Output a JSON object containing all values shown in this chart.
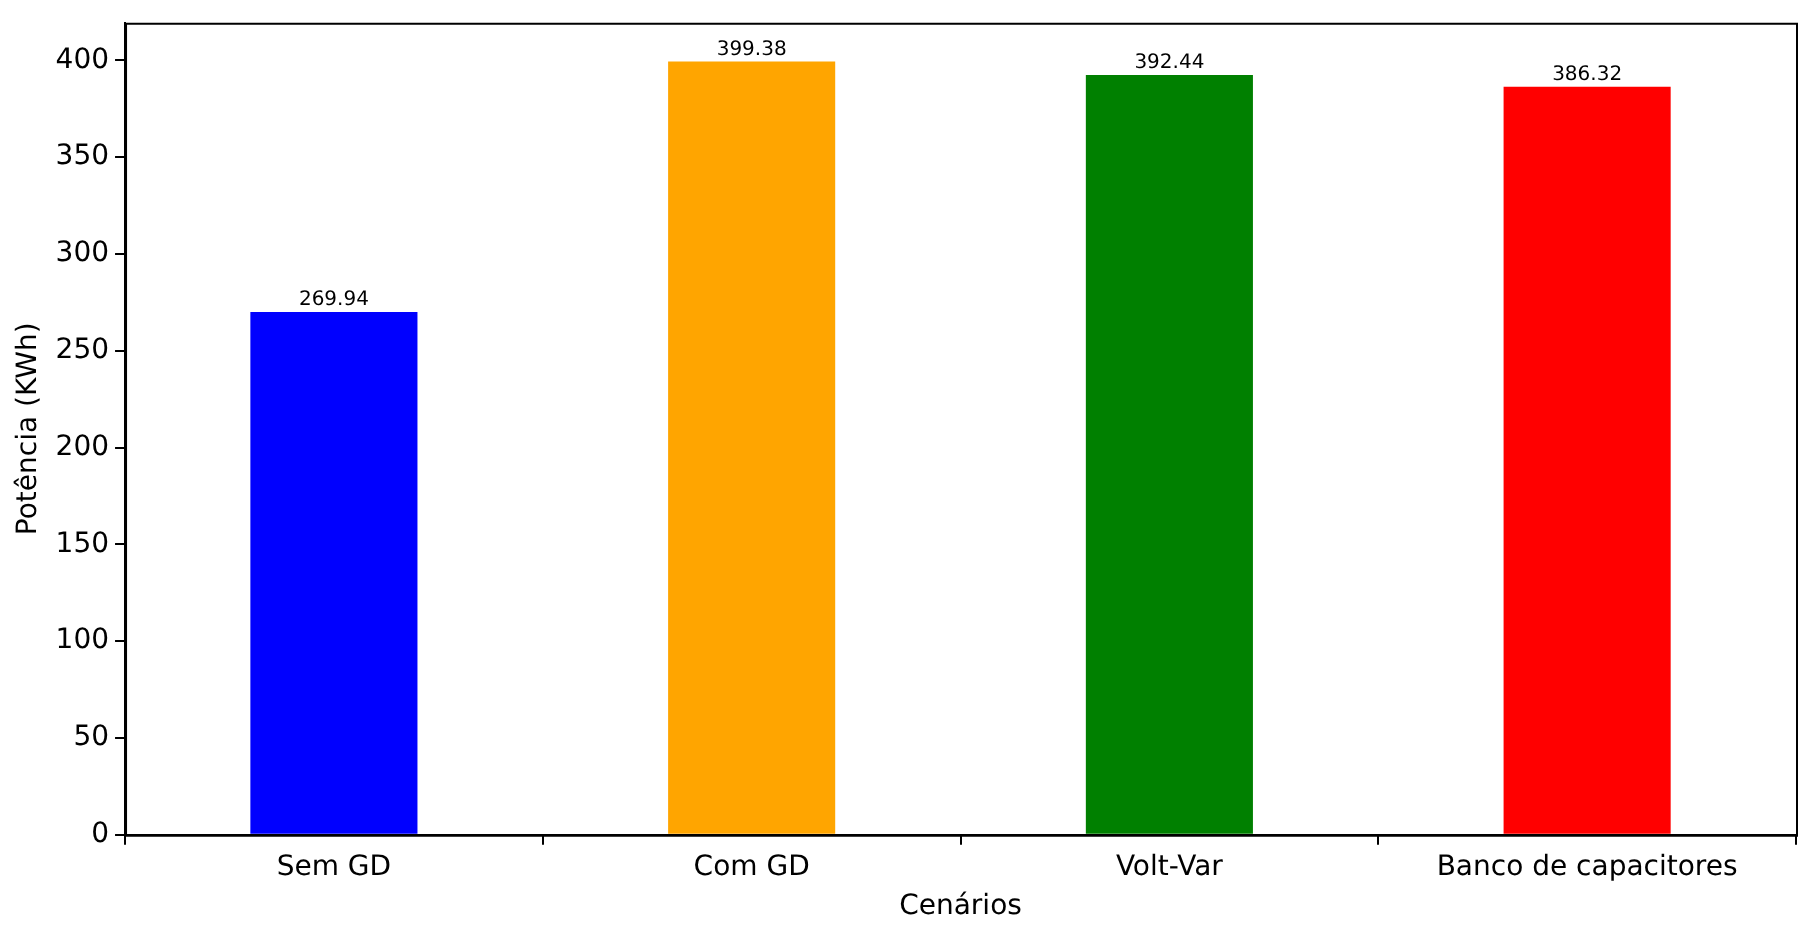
{
  "chart_data": {
    "type": "bar",
    "xlabel": "Cenários",
    "ylabel": "Potência (KWh)",
    "categories": [
      "Sem GD",
      "Com GD",
      "Volt-Var",
      "Banco de capacitores"
    ],
    "values": [
      269.94,
      399.38,
      392.44,
      386.32
    ],
    "colors": [
      "#0000ff",
      "#ffa500",
      "#008000",
      "#ff0000"
    ],
    "ylim": [
      0,
      419.35
    ],
    "yticks": [
      0,
      50,
      100,
      150,
      200,
      250,
      300,
      350,
      400
    ],
    "grid": false,
    "data_labels": true
  }
}
